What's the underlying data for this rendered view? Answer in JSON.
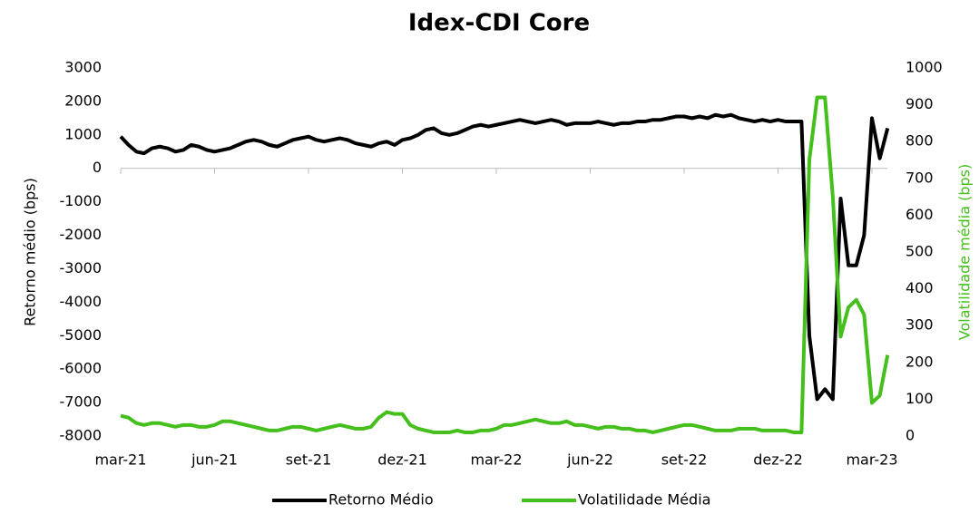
{
  "chart_data": {
    "type": "line",
    "title": "Idex-CDI Core",
    "y_label": "Retorno médio (bps)",
    "y2_label": "Volatilidade média (bps)",
    "categories": [
      "mar-21",
      null,
      null,
      null,
      null,
      null,
      null,
      null,
      null,
      null,
      null,
      null,
      "jun-21",
      null,
      null,
      null,
      null,
      null,
      null,
      null,
      null,
      null,
      null,
      null,
      "set-21",
      null,
      null,
      null,
      null,
      null,
      null,
      null,
      null,
      null,
      null,
      null,
      "dez-21",
      null,
      null,
      null,
      null,
      null,
      null,
      null,
      null,
      null,
      null,
      null,
      "mar-22",
      null,
      null,
      null,
      null,
      null,
      null,
      null,
      null,
      null,
      null,
      null,
      "jun-22",
      null,
      null,
      null,
      null,
      null,
      null,
      null,
      null,
      null,
      null,
      null,
      "set-22",
      null,
      null,
      null,
      null,
      null,
      null,
      null,
      null,
      null,
      null,
      null,
      "dez-22",
      null,
      null,
      null,
      null,
      null,
      null,
      null,
      null,
      null,
      null,
      null,
      "mar-23",
      null,
      null
    ],
    "series": [
      {
        "name": "Retorno Médio",
        "color": "#000000",
        "values": [
          950,
          700,
          500,
          450,
          600,
          650,
          600,
          500,
          550,
          700,
          650,
          550,
          500,
          550,
          600,
          700,
          800,
          850,
          800,
          700,
          650,
          750,
          850,
          900,
          950,
          850,
          800,
          850,
          900,
          850,
          750,
          700,
          650,
          750,
          800,
          700,
          850,
          900,
          1000,
          1150,
          1200,
          1050,
          1000,
          1050,
          1150,
          1250,
          1300,
          1250,
          1300,
          1350,
          1400,
          1450,
          1400,
          1350,
          1400,
          1450,
          1400,
          1300,
          1350,
          1350,
          1350,
          1400,
          1350,
          1300,
          1350,
          1350,
          1400,
          1400,
          1450,
          1450,
          1500,
          1550,
          1550,
          1500,
          1550,
          1500,
          1600,
          1550,
          1600,
          1500,
          1450,
          1400,
          1450,
          1400,
          1450,
          1400,
          1400,
          1400,
          -5000,
          -6900,
          -6600,
          -6900,
          -900,
          -2900,
          -2900,
          -2000,
          1500,
          300,
          1200
        ]
      },
      {
        "name": "Volatilidade Média",
        "color": "#44bf1b",
        "axis": "y2",
        "values": [
          55,
          50,
          35,
          30,
          35,
          35,
          30,
          25,
          30,
          30,
          25,
          25,
          30,
          40,
          40,
          35,
          30,
          25,
          20,
          15,
          15,
          20,
          25,
          25,
          20,
          15,
          20,
          25,
          30,
          25,
          20,
          20,
          25,
          50,
          65,
          60,
          60,
          30,
          20,
          15,
          10,
          10,
          10,
          15,
          10,
          10,
          15,
          15,
          20,
          30,
          30,
          35,
          40,
          45,
          40,
          35,
          35,
          40,
          30,
          30,
          25,
          20,
          25,
          25,
          20,
          20,
          15,
          15,
          10,
          15,
          20,
          25,
          30,
          30,
          25,
          20,
          15,
          15,
          15,
          20,
          20,
          20,
          15,
          15,
          15,
          15,
          10,
          10,
          750,
          920,
          920,
          650,
          270,
          350,
          370,
          330,
          90,
          110,
          220
        ]
      }
    ],
    "ylim": [
      -8000,
      3000
    ],
    "yticks": [
      -8000,
      -7000,
      -6000,
      -5000,
      -4000,
      -3000,
      -2000,
      -1000,
      0,
      1000,
      2000,
      3000
    ],
    "y2lim": [
      0,
      1000
    ],
    "y2ticks": [
      0,
      100,
      200,
      300,
      400,
      500,
      600,
      700,
      800,
      900,
      1000
    ],
    "grid": false,
    "legend": "bottom"
  }
}
